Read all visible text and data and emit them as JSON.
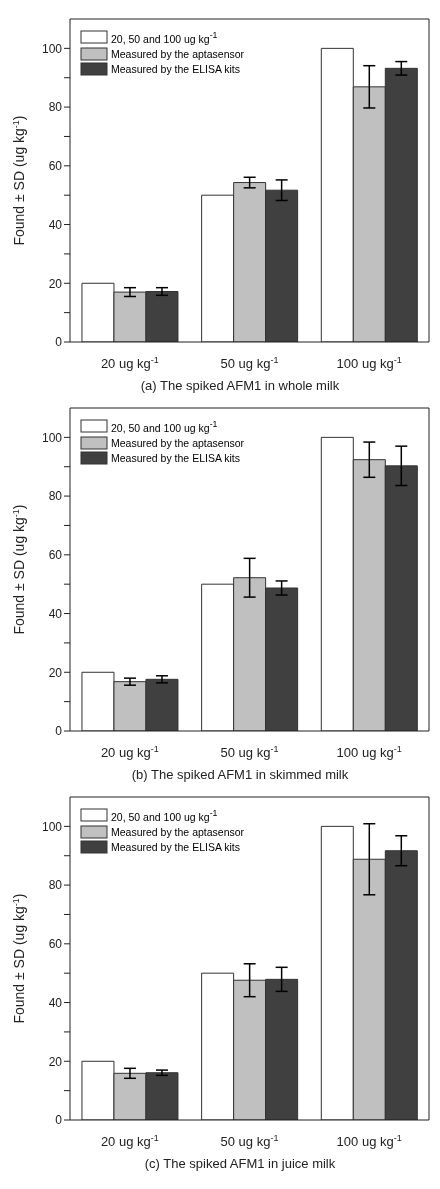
{
  "chart_data": [
    {
      "type": "bar",
      "xlabel": "(a) The spiked AFM1 in whole milk",
      "ylabel": "Found ± SD (ug kg$^{-1}$)",
      "categories": [
        "20 ug kg$^{-1}$",
        "50 ug kg$^{-1}$",
        "100 ug kg$^{-1}$"
      ],
      "series": [
        {
          "name": "20, 50 and 100 ug kg$^{-1}$",
          "color": "#ffffff",
          "values": [
            20,
            50,
            100
          ]
        },
        {
          "name": "Measured by the aptasensor",
          "color": "#c0c0c0",
          "values": [
            17.0,
            54.3,
            86.9
          ],
          "errors": [
            1.5,
            1.8,
            7.2
          ]
        },
        {
          "name": "Measured by the ELISA kits",
          "color": "#404040",
          "values": [
            17.2,
            51.7,
            93.2
          ],
          "errors": [
            1.3,
            3.5,
            2.3
          ]
        }
      ],
      "ylim": [
        0,
        110
      ],
      "yticks": [
        0,
        {
          "value": 10,
          "label": null
        },
        20,
        {
          "value": 30,
          "label": null
        },
        40,
        {
          "value": 50,
          "label": null
        },
        60,
        {
          "value": 70,
          "label": null
        },
        80,
        {
          "value": 90,
          "label": null
        },
        100
      ],
      "legend": "top left",
      "grid": false
    },
    {
      "type": "bar",
      "xlabel": "(b) The spiked AFM1 in skimmed milk",
      "ylabel": "Found ± SD (ug kg$^{-1}$)",
      "categories": [
        "20 ug kg$^{-1}$",
        "50 ug kg$^{-1}$",
        "100 ug kg$^{-1}$"
      ],
      "series": [
        {
          "name": "20, 50 and 100 ug kg$^{-1}$",
          "color": "#ffffff",
          "values": [
            20,
            50,
            100
          ]
        },
        {
          "name": "Measured by the aptasensor",
          "color": "#c0c0c0",
          "values": [
            16.8,
            52.2,
            92.4
          ],
          "errors": [
            1.2,
            6.6,
            6.0
          ]
        },
        {
          "name": "Measured by the ELISA kits",
          "color": "#404040",
          "values": [
            17.6,
            48.7,
            90.3
          ],
          "errors": [
            1.2,
            2.4,
            6.7
          ]
        }
      ],
      "ylim": [
        0,
        110
      ],
      "yticks": [
        0,
        {
          "value": 10,
          "label": null
        },
        20,
        {
          "value": 30,
          "label": null
        },
        40,
        {
          "value": 50,
          "label": null
        },
        60,
        {
          "value": 70,
          "label": null
        },
        80,
        {
          "value": 90,
          "label": null
        },
        100
      ],
      "legend": "top left",
      "grid": false
    },
    {
      "type": "bar",
      "xlabel": "(c) The spiked AFM1 in juice milk",
      "ylabel": "Found ± SD (ug kg$^{-1}$)",
      "categories": [
        "20 ug kg$^{-1}$",
        "50 ug kg$^{-1}$",
        "100 ug kg$^{-1}$"
      ],
      "series": [
        {
          "name": "20, 50 and 100 ug kg$^{-1}$",
          "color": "#ffffff",
          "values": [
            20,
            50,
            100
          ]
        },
        {
          "name": "Measured by the aptasensor",
          "color": "#c0c0c0",
          "values": [
            15.9,
            47.6,
            88.8
          ],
          "errors": [
            1.7,
            5.6,
            12.1
          ]
        },
        {
          "name": "Measured by the ELISA kits",
          "color": "#404040",
          "values": [
            16.1,
            47.9,
            91.7
          ],
          "errors": [
            0.9,
            4.1,
            5.1
          ]
        }
      ],
      "ylim": [
        0,
        110
      ],
      "yticks": [
        0,
        {
          "value": 10,
          "label": null
        },
        20,
        {
          "value": 30,
          "label": null
        },
        40,
        {
          "value": 50,
          "label": null
        },
        60,
        {
          "value": 70,
          "label": null
        },
        80,
        {
          "value": 90,
          "label": null
        },
        100
      ],
      "legend": "top left",
      "grid": false
    }
  ]
}
